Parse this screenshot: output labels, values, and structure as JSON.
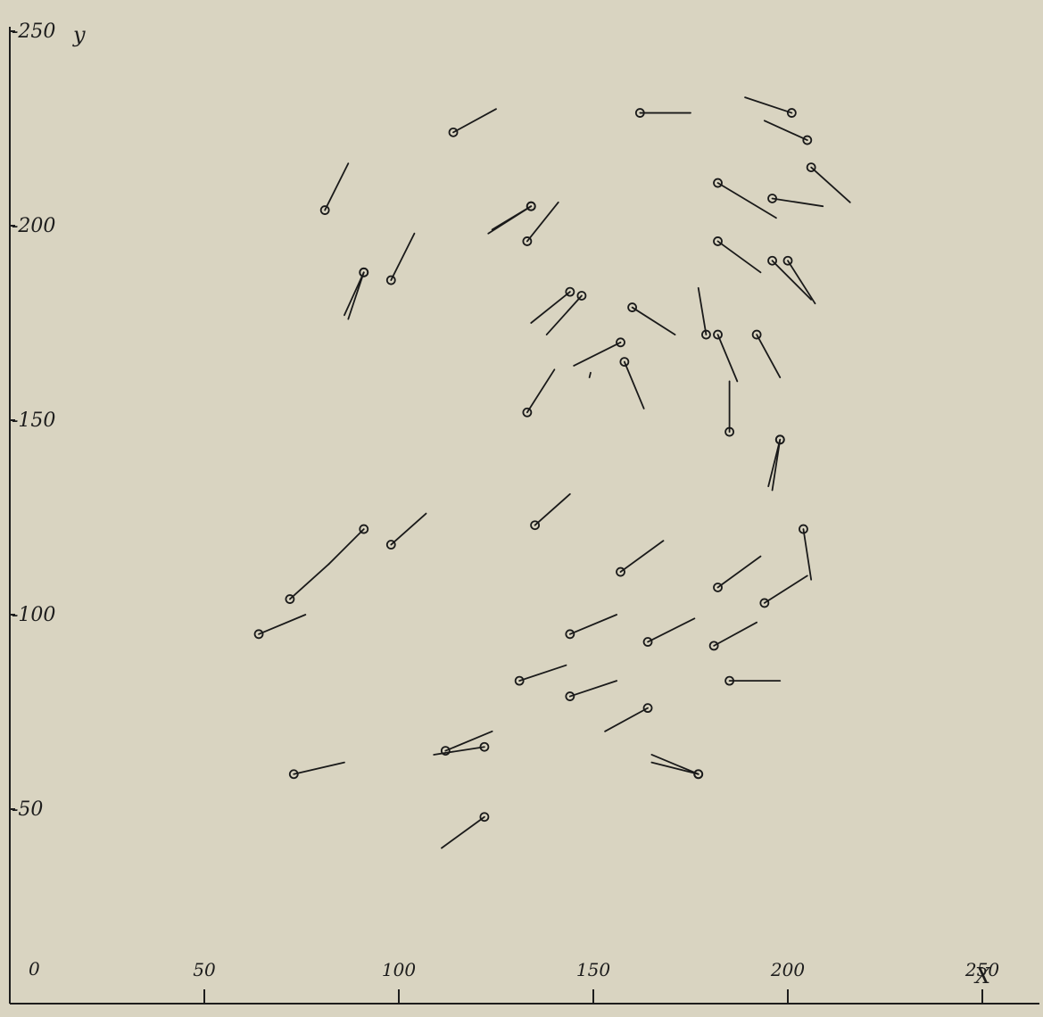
{
  "chart_data": {
    "type": "scatter",
    "title": "",
    "xlabel": "X",
    "ylabel": "y",
    "xlim": [
      0,
      265
    ],
    "ylim": [
      0,
      260
    ],
    "origin_label": "0",
    "x_ticks": [
      50,
      100,
      150,
      200,
      250
    ],
    "x_tick_labels": [
      "50",
      "100",
      "150",
      "200",
      "250"
    ],
    "y_ticks": [
      50,
      100,
      150,
      200,
      250
    ],
    "y_tick_labels": [
      "-50",
      "-100",
      "-150",
      "-200",
      "-250"
    ],
    "grid": false,
    "legend": "none",
    "series": [
      {
        "points": [
          {
            "x": 114,
            "y": 224,
            "dx": 11,
            "dy": 6
          },
          {
            "x": 162,
            "y": 229,
            "dx": 13,
            "dy": 0
          },
          {
            "x": 81,
            "y": 204,
            "dx": 6,
            "dy": 12
          },
          {
            "x": 134,
            "y": 205,
            "dx": -11,
            "dy": -7
          },
          {
            "x": 134,
            "y": 205,
            "dx": -10,
            "dy": -6
          },
          {
            "x": 133,
            "y": 196,
            "dx": 8,
            "dy": 10
          },
          {
            "x": 98,
            "y": 186,
            "dx": 6,
            "dy": 12
          },
          {
            "x": 91,
            "y": 188,
            "dx": -5,
            "dy": -11
          },
          {
            "x": 91,
            "y": 188,
            "dx": -4,
            "dy": -12
          },
          {
            "x": 144,
            "y": 183,
            "dx": -10,
            "dy": -8
          },
          {
            "x": 147,
            "y": 182,
            "dx": -9,
            "dy": -10
          },
          {
            "x": 160,
            "y": 179,
            "dx": 11,
            "dy": -7
          },
          {
            "x": 157,
            "y": 170,
            "dx": -12,
            "dy": -6
          },
          {
            "x": 158,
            "y": 165,
            "dx": 5,
            "dy": -12
          },
          {
            "x": 133,
            "y": 152,
            "dx": 7,
            "dy": 11
          },
          {
            "x": 201,
            "y": 229,
            "dx": -12,
            "dy": 4
          },
          {
            "x": 205,
            "y": 222,
            "dx": -11,
            "dy": 5
          },
          {
            "x": 206,
            "y": 215,
            "dx": 10,
            "dy": -9
          },
          {
            "x": 182,
            "y": 211,
            "dx": 15,
            "dy": -9
          },
          {
            "x": 196,
            "y": 207,
            "dx": 13,
            "dy": -2
          },
          {
            "x": 182,
            "y": 196,
            "dx": 11,
            "dy": -8
          },
          {
            "x": 196,
            "y": 191,
            "dx": 10,
            "dy": -10
          },
          {
            "x": 200,
            "y": 191,
            "dx": 7,
            "dy": -11
          },
          {
            "x": 179,
            "y": 172,
            "dx": -2,
            "dy": 12
          },
          {
            "x": 182,
            "y": 172,
            "dx": 5,
            "dy": -12
          },
          {
            "x": 192,
            "y": 172,
            "dx": 6,
            "dy": -11
          },
          {
            "x": 185,
            "y": 147,
            "dx": 0,
            "dy": 13
          },
          {
            "x": 198,
            "y": 145,
            "dx": -2,
            "dy": -13
          },
          {
            "x": 198,
            "y": 145,
            "dx": -3,
            "dy": -12
          },
          {
            "x": 91,
            "y": 122,
            "dx": -9,
            "dy": -9
          },
          {
            "x": 72,
            "y": 104,
            "dx": 10,
            "dy": 9
          },
          {
            "x": 98,
            "y": 118,
            "dx": 9,
            "dy": 8
          },
          {
            "x": 64,
            "y": 95,
            "dx": 12,
            "dy": 5
          },
          {
            "x": 135,
            "y": 123,
            "dx": 9,
            "dy": 8
          },
          {
            "x": 157,
            "y": 111,
            "dx": 11,
            "dy": 8
          },
          {
            "x": 182,
            "y": 107,
            "dx": 11,
            "dy": 8
          },
          {
            "x": 204,
            "y": 122,
            "dx": 2,
            "dy": -13
          },
          {
            "x": 194,
            "y": 103,
            "dx": 11,
            "dy": 7
          },
          {
            "x": 144,
            "y": 95,
            "dx": 12,
            "dy": 5
          },
          {
            "x": 164,
            "y": 93,
            "dx": 12,
            "dy": 6
          },
          {
            "x": 181,
            "y": 92,
            "dx": 11,
            "dy": 6
          },
          {
            "x": 131,
            "y": 83,
            "dx": 12,
            "dy": 4
          },
          {
            "x": 144,
            "y": 79,
            "dx": 12,
            "dy": 4
          },
          {
            "x": 164,
            "y": 76,
            "dx": -11,
            "dy": -6
          },
          {
            "x": 185,
            "y": 83,
            "dx": 13,
            "dy": 0
          },
          {
            "x": 112,
            "y": 65,
            "dx": 12,
            "dy": 5
          },
          {
            "x": 122,
            "y": 66,
            "dx": -13,
            "dy": -2
          },
          {
            "x": 73,
            "y": 59,
            "dx": 13,
            "dy": 3
          },
          {
            "x": 177,
            "y": 59,
            "dx": -12,
            "dy": 5
          },
          {
            "x": 177,
            "y": 59,
            "dx": -12,
            "dy": 3
          },
          {
            "x": 122,
            "y": 48,
            "dx": -11,
            "dy": -8
          }
        ]
      }
    ],
    "stray_marks": [
      {
        "x": 149,
        "y": 161,
        "dx": 0.3,
        "dy": 1.2
      }
    ]
  }
}
